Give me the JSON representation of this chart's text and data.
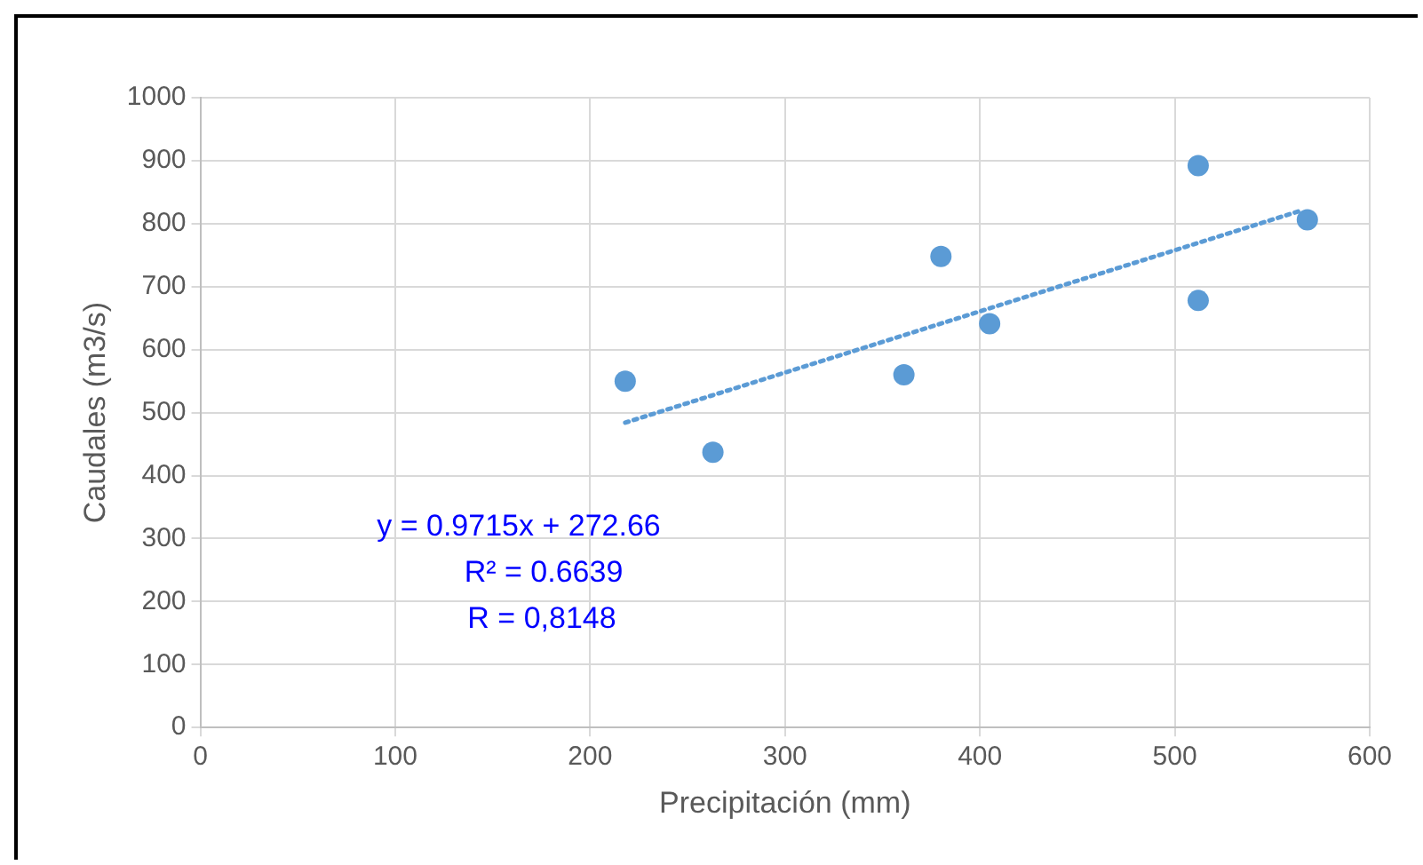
{
  "chart_data": {
    "type": "scatter",
    "xlabel": "Precipitación (mm)",
    "ylabel": "Caudales (m3/s)",
    "x": [
      218,
      263,
      361,
      380,
      405,
      512,
      512,
      568
    ],
    "xlim": [
      0,
      600
    ],
    "xticks": [
      0,
      100,
      200,
      300,
      400,
      500,
      600
    ],
    "ylim": [
      0,
      1000
    ],
    "yticks": [
      0,
      100,
      200,
      300,
      400,
      500,
      600,
      700,
      800,
      900,
      1000
    ],
    "grid": true,
    "marker": "circle",
    "series": [
      {
        "type": "scatter",
        "color": "#5b9bd5",
        "values": [
          550,
          437,
          560,
          748,
          641,
          892,
          678,
          806
        ]
      },
      {
        "type": "line",
        "color": "#5b9bd5",
        "x": [
          218,
          565
        ],
        "values": [
          484,
          821
        ],
        "marker": "none",
        "line_style": "dotted"
      }
    ],
    "annotations": [
      "y = 0.9715x + 272.66",
      "R² = 0.6639",
      "R = 0,8148"
    ]
  }
}
